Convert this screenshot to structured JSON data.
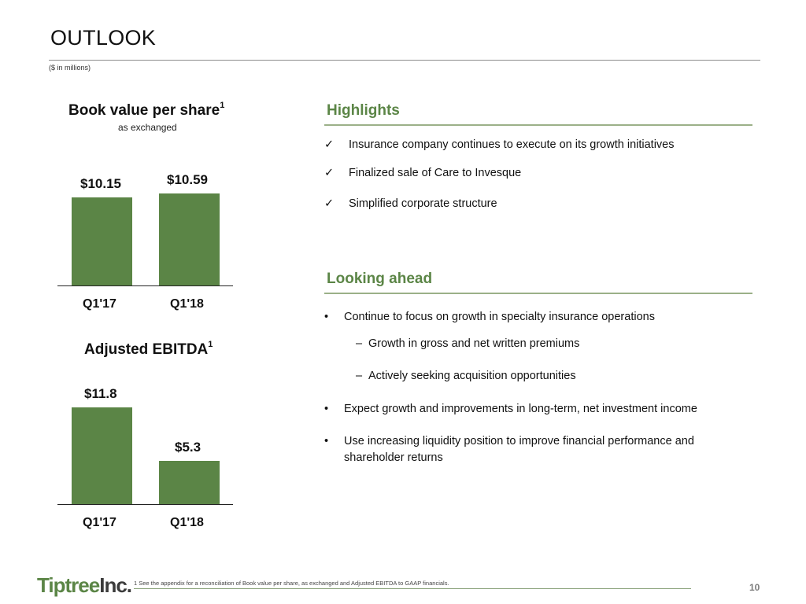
{
  "header": {
    "title": "OUTLOOK",
    "subtitle": "($ in millions)"
  },
  "book_value": {
    "title": "Book value per share",
    "footnote_marker": "1",
    "subtitle": "as exchanged"
  },
  "ebitda": {
    "title": "Adjusted EBITDA",
    "footnote_marker": "1"
  },
  "chart_data": [
    {
      "type": "bar",
      "title": "Book value per share",
      "subtitle": "as exchanged",
      "categories": [
        "Q1'17",
        "Q1'18"
      ],
      "values": [
        10.15,
        10.59
      ],
      "value_labels": [
        "$10.15",
        "$10.59"
      ],
      "ylim": [
        0,
        10.59
      ],
      "grid": false,
      "color": "#5b8546"
    },
    {
      "type": "bar",
      "title": "Adjusted EBITDA",
      "categories": [
        "Q1'17",
        "Q1'18"
      ],
      "values": [
        11.8,
        5.3
      ],
      "value_labels": [
        "$11.8",
        "$5.3"
      ],
      "ylim": [
        0,
        11.8
      ],
      "grid": false,
      "color": "#5b8546"
    }
  ],
  "highlights": {
    "heading": "Highlights",
    "check_mark": "✓",
    "items": [
      "Insurance company continues to execute on its growth initiatives",
      "Finalized sale of Care to Invesque",
      "Simplified corporate structure"
    ]
  },
  "looking_ahead": {
    "heading": "Looking ahead",
    "bullet_mark": "•",
    "dash_mark": "–",
    "bullet1": "Continue to focus on growth in specialty insurance operations",
    "sub1": "Growth in gross and net written premiums",
    "sub2": "Actively seeking acquisition opportunities",
    "bullet2": "Expect growth and improvements in long-term, net investment income",
    "bullet3_line1": "Use increasing liquidity position to improve financial performance and",
    "bullet3_line2": "shareholder returns"
  },
  "footer": {
    "logo_main": "Tiptree",
    "logo_suffix": "Inc.",
    "footnote": "1 See the appendix for a reconciliation of Book value per share, as exchanged and Adjusted EBITDA to GAAP financials.",
    "page_number": "10"
  },
  "colors": {
    "accent": "#5b8546",
    "section_rule": "#9bb088"
  }
}
